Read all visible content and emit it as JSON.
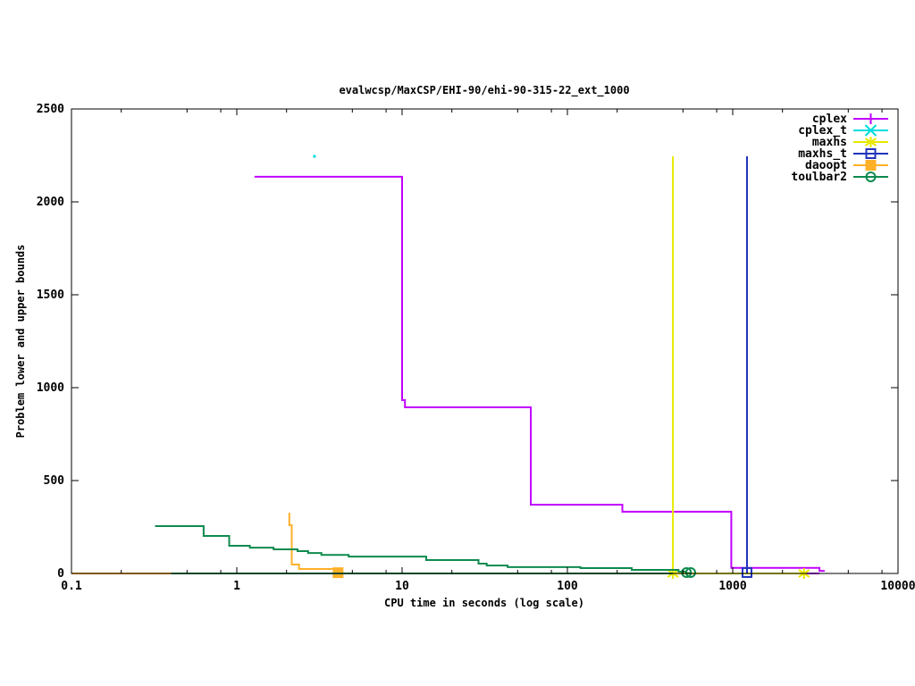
{
  "window": {
    "background": "#ffffff"
  },
  "chart_data": {
    "type": "line",
    "title": "evalwcsp/MaxCSP/EHI-90/ehi-90-315-22_ext_1000",
    "xlabel": "CPU time in seconds (log scale)",
    "ylabel": "Problem lower and upper bounds",
    "x_scale": "log",
    "xlim": [
      0.1,
      10000
    ],
    "ylim": [
      0,
      2500
    ],
    "grid": false,
    "legend_position": "top-right-inside",
    "x_ticks": [
      {
        "v": 0.1,
        "label": "0.1"
      },
      {
        "v": 1,
        "label": "1"
      },
      {
        "v": 10,
        "label": "10"
      },
      {
        "v": 100,
        "label": "100"
      },
      {
        "v": 1000,
        "label": "1000"
      },
      {
        "v": 10000,
        "label": "10000"
      }
    ],
    "x_minor_tick_multiples": [
      2,
      5,
      8
    ],
    "y_ticks": [
      {
        "v": 0,
        "label": "0"
      },
      {
        "v": 500,
        "label": "500"
      },
      {
        "v": 1000,
        "label": "1000"
      },
      {
        "v": 1500,
        "label": "1500"
      },
      {
        "v": 2000,
        "label": "2000"
      },
      {
        "v": 2500,
        "label": "2500"
      }
    ],
    "series": [
      {
        "name": "cplex",
        "color": "#c000ff",
        "marker": "plus",
        "lines": [
          [
            [
              0.1,
              0
            ],
            [
              3350,
              0
            ]
          ],
          [
            [
              1.28,
              2135
            ],
            [
              10,
              2135
            ],
            [
              10,
              933
            ],
            [
              10.4,
              933
            ],
            [
              10.4,
              894
            ],
            [
              60,
              894
            ],
            [
              60,
              370
            ],
            [
              215,
              370
            ],
            [
              215,
              332
            ],
            [
              980,
              332
            ],
            [
              980,
              30
            ],
            [
              3350,
              30
            ],
            [
              3350,
              14
            ],
            [
              3600,
              14
            ]
          ]
        ],
        "points": []
      },
      {
        "name": "cplex_t",
        "color": "#00dddd",
        "marker": "dot",
        "lines": [],
        "points": [
          [
            2.95,
            2245
          ]
        ]
      },
      {
        "name": "maxhs",
        "color": "#e8e800",
        "marker": "star",
        "lines": [
          [
            [
              435,
              2245
            ],
            [
              435,
              0
            ],
            [
              2700,
              0
            ]
          ]
        ],
        "points": [
          [
            435,
            0
          ],
          [
            2700,
            0
          ]
        ]
      },
      {
        "name": "maxhs_t",
        "color": "#2233bb",
        "marker": "osquare",
        "lines": [
          [
            [
              1220,
              2245
            ],
            [
              1220,
              0
            ]
          ]
        ],
        "points": [
          [
            1220,
            5
          ]
        ]
      },
      {
        "name": "daoopt",
        "color": "#ffb028",
        "marker": "fsquare",
        "lines": [
          [
            [
              0.1,
              0
            ],
            [
              4.1,
              0
            ]
          ],
          [
            [
              2.08,
              327
            ],
            [
              2.08,
              260
            ],
            [
              2.15,
              260
            ],
            [
              2.15,
              48
            ],
            [
              2.38,
              48
            ],
            [
              2.38,
              24
            ],
            [
              4.1,
              24
            ]
          ]
        ],
        "points": [
          [
            4.1,
            4
          ]
        ]
      },
      {
        "name": "toulbar2",
        "color": "#0e8a4e",
        "marker": "ocircle",
        "lines": [
          [
            [
              0.4,
              0
            ],
            [
              435,
              0
            ]
          ],
          [
            [
              0.32,
              255
            ],
            [
              0.63,
              255
            ],
            [
              0.63,
              202
            ],
            [
              0.9,
              202
            ],
            [
              0.9,
              149
            ],
            [
              1.2,
              149
            ],
            [
              1.2,
              139
            ],
            [
              1.67,
              139
            ],
            [
              1.67,
              130
            ],
            [
              2.33,
              130
            ],
            [
              2.33,
              120
            ],
            [
              2.7,
              120
            ],
            [
              2.7,
              110
            ],
            [
              3.25,
              110
            ],
            [
              3.25,
              100
            ],
            [
              4.75,
              100
            ],
            [
              4.75,
              91
            ],
            [
              14,
              91
            ],
            [
              14,
              72
            ],
            [
              29,
              72
            ],
            [
              29,
              53
            ],
            [
              32.5,
              53
            ],
            [
              32.5,
              43
            ],
            [
              43.5,
              43
            ],
            [
              43.5,
              34
            ],
            [
              120,
              34
            ],
            [
              120,
              29
            ],
            [
              245,
              29
            ],
            [
              245,
              19
            ],
            [
              470,
              19
            ],
            [
              470,
              10
            ],
            [
              520,
              10
            ],
            [
              520,
              2
            ],
            [
              557,
              2
            ]
          ]
        ],
        "points": [
          [
            525,
            5
          ],
          [
            557,
            5
          ]
        ]
      }
    ]
  }
}
